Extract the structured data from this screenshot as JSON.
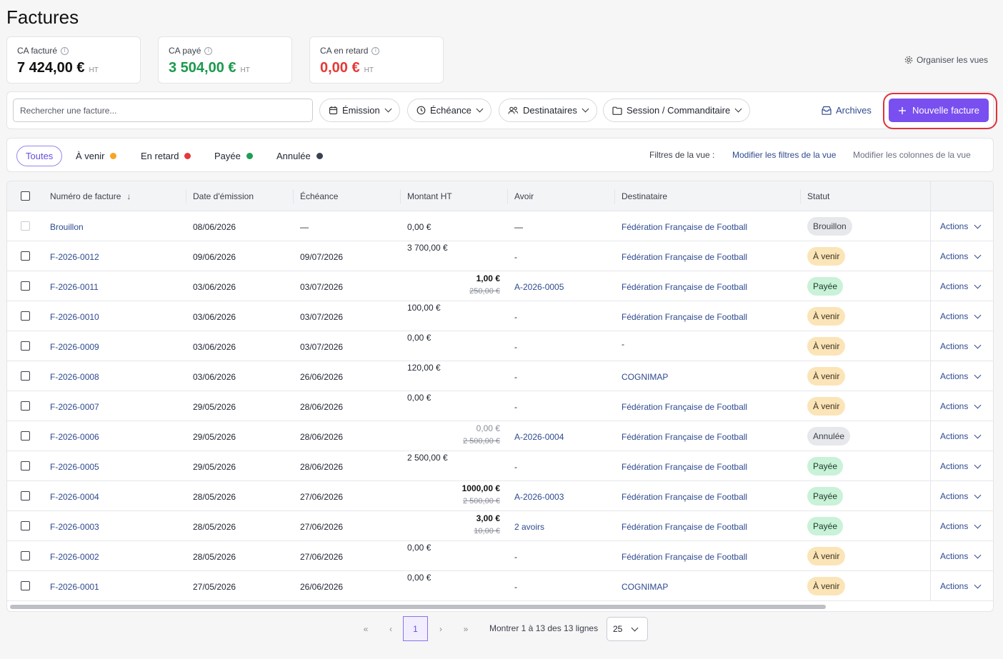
{
  "page_title": "Factures",
  "kpis": [
    {
      "label": "CA facturé",
      "value": "7 424,00 €",
      "unit": "HT",
      "color": "#111111"
    },
    {
      "label": "CA payé",
      "value": "3 504,00 €",
      "unit": "HT",
      "color": "#1a9a4b"
    },
    {
      "label": "CA en retard",
      "value": "0,00 €",
      "unit": "HT",
      "color": "#e53935"
    }
  ],
  "organize_views": "Organiser les vues",
  "toolbar": {
    "search_placeholder": "Rechercher une facture...",
    "filters": [
      "Émission",
      "Échéance",
      "Destinataires",
      "Session / Commanditaire"
    ],
    "archives": "Archives",
    "new_invoice": "Nouvelle facture"
  },
  "status_tabs": [
    {
      "label": "Toutes",
      "dot": ""
    },
    {
      "label": "À venir",
      "dot": "#f5a524"
    },
    {
      "label": "En retard",
      "dot": "#e5383b"
    },
    {
      "label": "Payée",
      "dot": "#1f9d55"
    },
    {
      "label": "Annulée",
      "dot": "#3a4154"
    }
  ],
  "view_filters": {
    "label": "Filtres de la vue :",
    "modify_filters": "Modifier les filtres de la vue",
    "modify_columns": "Modifier les colonnes de la vue"
  },
  "columns": [
    "Numéro de facture",
    "Date d'émission",
    "Échéance",
    "Montant HT",
    "Avoir",
    "Destinataire",
    "Statut"
  ],
  "status_styles": {
    "Brouillon": {
      "bg": "#e7e8eb",
      "fg": "#3b3f4a"
    },
    "À venir": {
      "bg": "#fbe5b8",
      "fg": "#3b3020"
    },
    "Payée": {
      "bg": "#c9f2d9",
      "fg": "#1c3a28"
    },
    "Annulée": {
      "bg": "#e7e8eb",
      "fg": "#3b3f4a"
    }
  },
  "rows": [
    {
      "number": "Brouillon",
      "emission": "08/06/2026",
      "due": "—",
      "amount": "0,00 €",
      "amount_type": "plain_mid",
      "strike": "",
      "avoir": "—",
      "avoir_link": false,
      "dest": "Fédération Française de Football",
      "dest_link": true,
      "status": "Brouillon",
      "checkbox_disabled": true,
      "actions": "Actions"
    },
    {
      "number": "F-2026-0012",
      "emission": "09/06/2026",
      "due": "09/07/2026",
      "amount": "3 700,00 €",
      "amount_type": "plain_top",
      "strike": "",
      "avoir": "-",
      "avoir_link": false,
      "dest": "Fédération Française de Football",
      "dest_link": true,
      "status": "À venir",
      "checkbox_disabled": false,
      "actions": "Actions"
    },
    {
      "number": "F-2026-0011",
      "emission": "03/06/2026",
      "due": "03/07/2026",
      "amount": "1,00 €",
      "amount_type": "bold_strike",
      "strike": "250,00 €",
      "avoir": "A-2026-0005",
      "avoir_link": true,
      "dest": "Fédération Française de Football",
      "dest_link": true,
      "status": "Payée",
      "checkbox_disabled": false,
      "actions": "Actions"
    },
    {
      "number": "F-2026-0010",
      "emission": "03/06/2026",
      "due": "03/07/2026",
      "amount": "100,00 €",
      "amount_type": "plain_top",
      "strike": "",
      "avoir": "-",
      "avoir_link": false,
      "dest": "Fédération Française de Football",
      "dest_link": true,
      "status": "À venir",
      "checkbox_disabled": false,
      "actions": "Actions"
    },
    {
      "number": "F-2026-0009",
      "emission": "03/06/2026",
      "due": "03/07/2026",
      "amount": "0,00 €",
      "amount_type": "plain_top",
      "strike": "",
      "avoir": "-",
      "avoir_link": false,
      "dest": "-",
      "dest_link": false,
      "status": "À venir",
      "checkbox_disabled": false,
      "actions": "Actions"
    },
    {
      "number": "F-2026-0008",
      "emission": "03/06/2026",
      "due": "26/06/2026",
      "amount": "120,00 €",
      "amount_type": "plain_top",
      "strike": "",
      "avoir": "-",
      "avoir_link": false,
      "dest": "COGNIMAP",
      "dest_link": true,
      "status": "À venir",
      "checkbox_disabled": false,
      "actions": "Actions"
    },
    {
      "number": "F-2026-0007",
      "emission": "29/05/2026",
      "due": "28/06/2026",
      "amount": "0,00 €",
      "amount_type": "plain_top",
      "strike": "",
      "avoir": "-",
      "avoir_link": false,
      "dest": "Fédération Française de Football",
      "dest_link": true,
      "status": "À venir",
      "checkbox_disabled": false,
      "actions": "Actions"
    },
    {
      "number": "F-2026-0006",
      "emission": "29/05/2026",
      "due": "28/06/2026",
      "amount": "0,00 €",
      "amount_type": "grey_strike",
      "strike": "2 500,00 €",
      "avoir": "A-2026-0004",
      "avoir_link": true,
      "dest": "Fédération Française de Football",
      "dest_link": true,
      "status": "Annulée",
      "checkbox_disabled": false,
      "actions": "Actions"
    },
    {
      "number": "F-2026-0005",
      "emission": "29/05/2026",
      "due": "28/06/2026",
      "amount": "2 500,00 €",
      "amount_type": "plain_top",
      "strike": "",
      "avoir": "-",
      "avoir_link": false,
      "dest": "Fédération Française de Football",
      "dest_link": true,
      "status": "Payée",
      "checkbox_disabled": false,
      "actions": "Actions"
    },
    {
      "number": "F-2026-0004",
      "emission": "28/05/2026",
      "due": "27/06/2026",
      "amount": "1000,00 €",
      "amount_type": "bold_strike",
      "strike": "2 500,00 €",
      "avoir": "A-2026-0003",
      "avoir_link": true,
      "dest": "Fédération Française de Football",
      "dest_link": true,
      "status": "Payée",
      "checkbox_disabled": false,
      "actions": "Actions"
    },
    {
      "number": "F-2026-0003",
      "emission": "28/05/2026",
      "due": "27/06/2026",
      "amount": "3,00 €",
      "amount_type": "bold_strike",
      "strike": "10,00 €",
      "avoir": "2 avoirs",
      "avoir_link": true,
      "dest": "Fédération Française de Football",
      "dest_link": true,
      "status": "Payée",
      "checkbox_disabled": false,
      "actions": "Actions"
    },
    {
      "number": "F-2026-0002",
      "emission": "28/05/2026",
      "due": "27/06/2026",
      "amount": "0,00 €",
      "amount_type": "plain_top",
      "strike": "",
      "avoir": "-",
      "avoir_link": false,
      "dest": "Fédération Française de Football",
      "dest_link": true,
      "status": "À venir",
      "checkbox_disabled": false,
      "actions": "Actions"
    },
    {
      "number": "F-2026-0001",
      "emission": "27/05/2026",
      "due": "26/06/2026",
      "amount": "0,00 €",
      "amount_type": "plain_top",
      "strike": "",
      "avoir": "-",
      "avoir_link": false,
      "dest": "COGNIMAP",
      "dest_link": true,
      "status": "À venir",
      "checkbox_disabled": false,
      "actions": "Actions"
    }
  ],
  "pagination": {
    "first": "«",
    "prev": "‹",
    "current_page": "1",
    "next": "›",
    "last": "»",
    "info": "Montrer 1 à 13 des 13 lignes",
    "page_size": "25"
  }
}
